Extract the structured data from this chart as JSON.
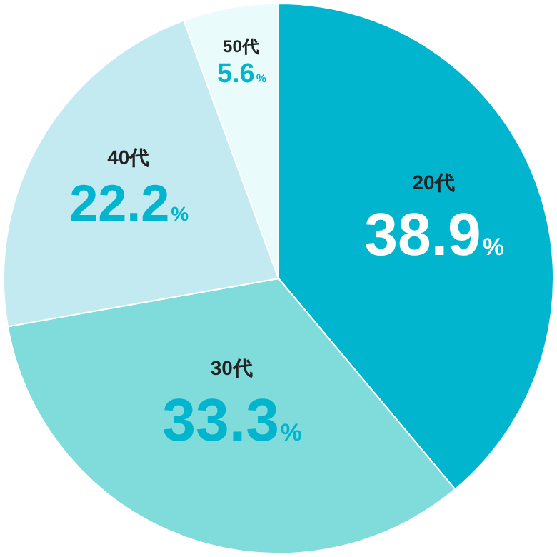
{
  "chart_data": {
    "type": "pie",
    "categories": [
      "20代",
      "30代",
      "40代",
      "50代"
    ],
    "values": [
      38.9,
      33.3,
      22.2,
      5.6
    ],
    "colors": [
      "#00b5cd",
      "#80dcdb",
      "#c4eaf1",
      "#e9fbfb"
    ],
    "value_labels": [
      "38.9%",
      "33.3%",
      "22.2%",
      "5.6%"
    ],
    "legend": false
  }
}
